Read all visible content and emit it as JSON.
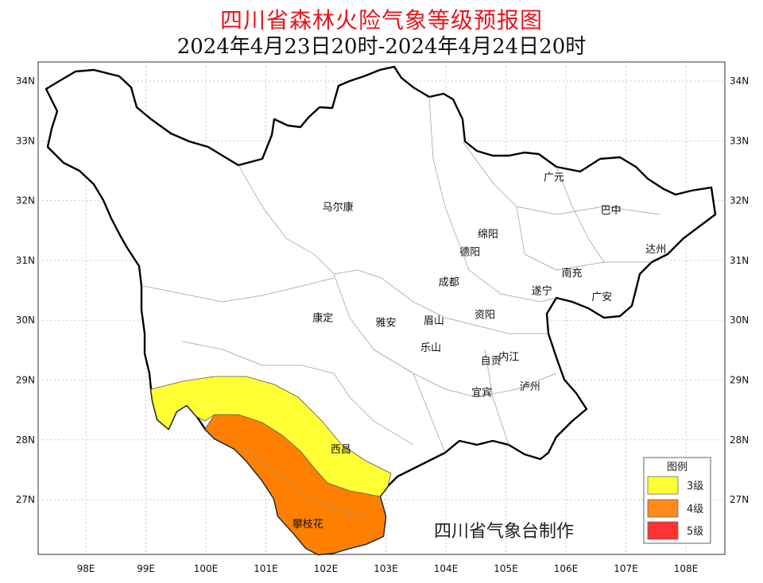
{
  "title": "四川省森林火险气象等级预报图",
  "subtitle": "2024年4月23日20时-2024年4月24日20时",
  "credit": "四川省气象台制作",
  "axes": {
    "lat_labels": [
      "34N",
      "33N",
      "32N",
      "31N",
      "30N",
      "29N",
      "28N",
      "27N"
    ],
    "lon_labels": [
      "98E",
      "99E",
      "100E",
      "101E",
      "102E",
      "103E",
      "104E",
      "105E",
      "106E",
      "107E",
      "108E"
    ]
  },
  "cities": [
    {
      "name": "广元",
      "lon": 105.8,
      "lat": 32.4
    },
    {
      "name": "巴中",
      "lon": 106.75,
      "lat": 31.85
    },
    {
      "name": "马尔康",
      "lon": 102.2,
      "lat": 31.9
    },
    {
      "name": "绵阳",
      "lon": 104.7,
      "lat": 31.45
    },
    {
      "name": "达州",
      "lon": 107.5,
      "lat": 31.2
    },
    {
      "name": "德阳",
      "lon": 104.4,
      "lat": 31.15
    },
    {
      "name": "南充",
      "lon": 106.1,
      "lat": 30.8
    },
    {
      "name": "成都",
      "lon": 104.05,
      "lat": 30.65
    },
    {
      "name": "遂宁",
      "lon": 105.6,
      "lat": 30.5
    },
    {
      "name": "广安",
      "lon": 106.6,
      "lat": 30.4
    },
    {
      "name": "资阳",
      "lon": 104.65,
      "lat": 30.1
    },
    {
      "name": "康定",
      "lon": 101.95,
      "lat": 30.05
    },
    {
      "name": "雅安",
      "lon": 103.0,
      "lat": 29.97
    },
    {
      "name": "眉山",
      "lon": 103.8,
      "lat": 30.0
    },
    {
      "name": "乐山",
      "lon": 103.75,
      "lat": 29.55
    },
    {
      "name": "自贡",
      "lon": 104.75,
      "lat": 29.33
    },
    {
      "name": "内江",
      "lon": 105.05,
      "lat": 29.4
    },
    {
      "name": "宜宾",
      "lon": 104.6,
      "lat": 28.8
    },
    {
      "name": "泸州",
      "lon": 105.4,
      "lat": 28.9
    },
    {
      "name": "西昌",
      "lon": 102.25,
      "lat": 27.85
    },
    {
      "name": "攀枝花",
      "lon": 101.7,
      "lat": 26.6
    }
  ],
  "legend": {
    "title": "图例",
    "items": [
      {
        "label": "3级",
        "color": "#ffff33"
      },
      {
        "label": "4级",
        "color": "#ff8c1a"
      },
      {
        "label": "5级",
        "color": "#ff3333"
      }
    ]
  },
  "zones": [
    {
      "level": "3级",
      "color": "#ffff33"
    },
    {
      "level": "4级",
      "color": "#ff8000"
    }
  ]
}
